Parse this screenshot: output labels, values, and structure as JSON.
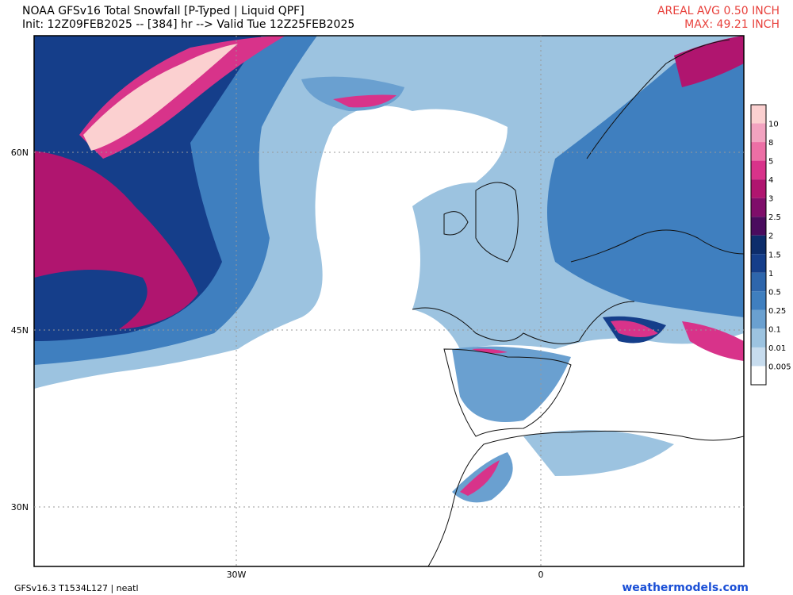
{
  "header": {
    "title": "NOAA GFSv16 Total Snowfall [P-Typed | Liquid QPF]",
    "subtitle": "Init: 12Z09FEB2025 -- [384] hr --> Valid Tue 12Z25FEB2025",
    "areal_avg": "AREAL AVG 0.50 INCH",
    "max": "MAX: 49.21 INCH"
  },
  "map": {
    "lat_labels": [
      "60N",
      "45N",
      "30N"
    ],
    "lon_labels": [
      "30W",
      "0"
    ]
  },
  "colorbar": {
    "labels": [
      "10",
      "8",
      "5",
      "4",
      "3",
      "2.5",
      "2",
      "1.5",
      "1",
      "0.5",
      "0.25",
      "0.1",
      "0.01",
      "0.005"
    ],
    "colors": [
      "#fbd0d0",
      "#f2a3c0",
      "#ec6fa5",
      "#d8338a",
      "#b0156f",
      "#7f0e6a",
      "#4a0c5e",
      "#0d2d6b",
      "#153e8a",
      "#2e66ac",
      "#3f7fbf",
      "#6aa0d0",
      "#9cc3e0",
      "#c7dcee",
      "#ffffff"
    ]
  },
  "footer": {
    "left": "GFSv16.3 T1534L127 | neatl",
    "right": "weathermodels.com"
  }
}
